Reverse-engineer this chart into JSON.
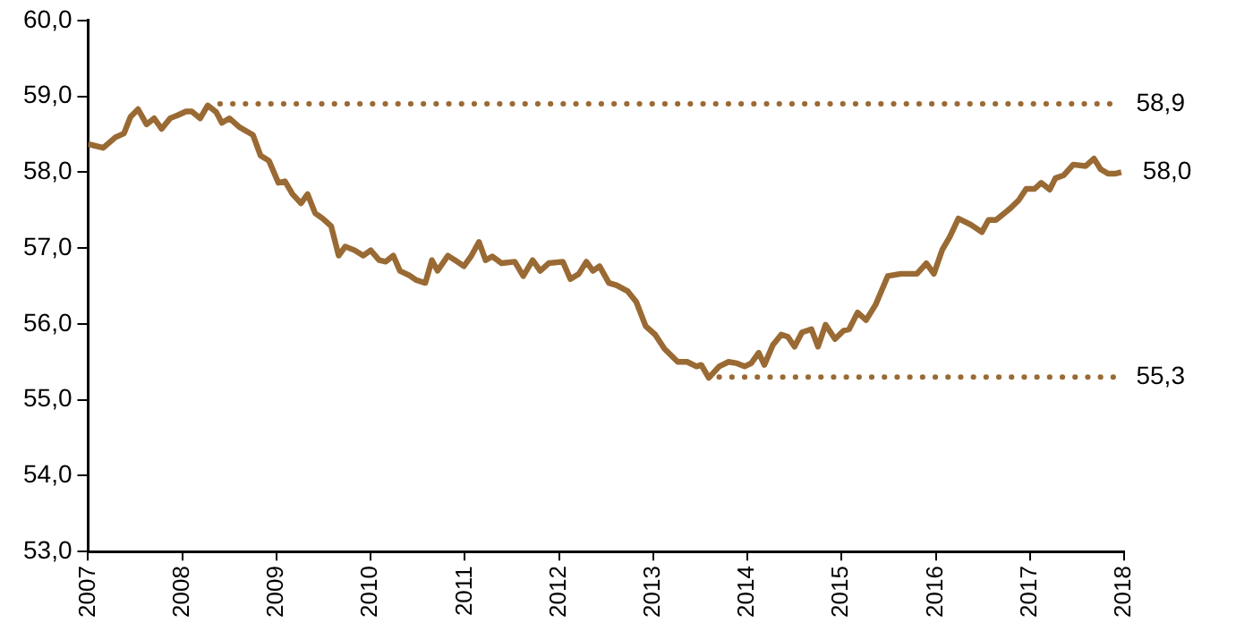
{
  "chart_data": {
    "type": "line",
    "xlim": [
      2007,
      2018
    ],
    "xticks": [
      2007,
      2008,
      2009,
      2010,
      2011,
      2012,
      2013,
      2014,
      2015,
      2016,
      2017,
      2018
    ],
    "ylim": [
      53,
      60
    ],
    "yticks": [
      {
        "value": 53,
        "label": "53,0"
      },
      {
        "value": 54,
        "label": "54,0"
      },
      {
        "value": 55,
        "label": "55,0"
      },
      {
        "value": 56,
        "label": "56,0"
      },
      {
        "value": 57,
        "label": "57,0"
      },
      {
        "value": 58,
        "label": "58,0"
      },
      {
        "value": 59,
        "label": "59,0"
      },
      {
        "value": 60,
        "label": "60,0"
      }
    ],
    "grid": false,
    "legend": false,
    "marker": "none",
    "series": [
      {
        "color": "#9a6a34",
        "line_style": "solid",
        "x": [
          2007.0,
          2007.16,
          2007.29,
          2007.38,
          2007.45,
          2007.53,
          2007.62,
          2007.7,
          2007.78,
          2007.87,
          2007.95,
          2008.04,
          2008.1,
          2008.19,
          2008.27,
          2008.36,
          2008.42,
          2008.5,
          2008.61,
          2008.75,
          2008.83,
          2008.92,
          2009.02,
          2009.09,
          2009.17,
          2009.26,
          2009.33,
          2009.41,
          2009.49,
          2009.58,
          2009.66,
          2009.73,
          2009.83,
          2009.92,
          2010.0,
          2010.09,
          2010.16,
          2010.24,
          2010.31,
          2010.41,
          2010.48,
          2010.58,
          2010.65,
          2010.71,
          2010.82,
          2010.92,
          2010.99,
          2011.07,
          2011.15,
          2011.22,
          2011.29,
          2011.39,
          2011.53,
          2011.62,
          2011.72,
          2011.8,
          2011.89,
          2012.04,
          2012.12,
          2012.21,
          2012.29,
          2012.36,
          2012.43,
          2012.53,
          2012.61,
          2012.73,
          2012.82,
          2012.92,
          2013.02,
          2013.12,
          2013.26,
          2013.36,
          2013.46,
          2013.51,
          2013.59,
          2013.7,
          2013.8,
          2013.89,
          2013.97,
          2014.04,
          2014.12,
          2014.18,
          2014.27,
          2014.36,
          2014.43,
          2014.5,
          2014.58,
          2014.68,
          2014.75,
          2014.83,
          2014.93,
          2015.02,
          2015.08,
          2015.17,
          2015.26,
          2015.36,
          2015.49,
          2015.63,
          2015.8,
          2015.9,
          2015.98,
          2016.07,
          2016.15,
          2016.24,
          2016.37,
          2016.49,
          2016.56,
          2016.64,
          2016.78,
          2016.88,
          2016.96,
          2017.05,
          2017.12,
          2017.21,
          2017.27,
          2017.36,
          2017.46,
          2017.59,
          2017.68,
          2017.75,
          2017.83,
          2017.9,
          2017.97
        ],
        "values": [
          58.37,
          58.32,
          58.46,
          58.51,
          58.73,
          58.83,
          58.63,
          58.71,
          58.57,
          58.71,
          58.75,
          58.8,
          58.8,
          58.71,
          58.88,
          58.79,
          58.65,
          58.71,
          58.59,
          58.49,
          58.22,
          58.15,
          57.86,
          57.88,
          57.71,
          57.59,
          57.71,
          57.46,
          57.39,
          57.29,
          56.9,
          57.02,
          56.97,
          56.9,
          56.97,
          56.84,
          56.82,
          56.9,
          56.7,
          56.64,
          56.58,
          56.54,
          56.84,
          56.7,
          56.9,
          56.82,
          56.76,
          56.9,
          57.08,
          56.84,
          56.89,
          56.8,
          56.82,
          56.63,
          56.84,
          56.7,
          56.8,
          56.82,
          56.59,
          56.66,
          56.82,
          56.7,
          56.76,
          56.54,
          56.51,
          56.43,
          56.29,
          55.97,
          55.86,
          55.67,
          55.5,
          55.5,
          55.44,
          55.46,
          55.29,
          55.44,
          55.5,
          55.48,
          55.44,
          55.48,
          55.62,
          55.46,
          55.72,
          55.86,
          55.83,
          55.7,
          55.89,
          55.93,
          55.7,
          55.99,
          55.8,
          55.91,
          55.93,
          56.15,
          56.05,
          56.25,
          56.63,
          56.66,
          56.66,
          56.8,
          56.66,
          56.98,
          57.15,
          57.39,
          57.31,
          57.21,
          57.37,
          57.37,
          57.51,
          57.63,
          57.78,
          57.78,
          57.86,
          57.77,
          57.92,
          57.96,
          58.1,
          58.08,
          58.18,
          58.04,
          57.98,
          57.98,
          58.0
        ],
        "value_labels": [
          null,
          null,
          null,
          null,
          null,
          null,
          null,
          null,
          null,
          null,
          null,
          null,
          null,
          null,
          null,
          null,
          null,
          null,
          null,
          null,
          null,
          null,
          null,
          null,
          null,
          null,
          null,
          null,
          null,
          null,
          null,
          null,
          null,
          null,
          null,
          null,
          null,
          null,
          null,
          null,
          null,
          null,
          null,
          null,
          null,
          null,
          null,
          null,
          null,
          null,
          null,
          null,
          null,
          null,
          null,
          null,
          null,
          null,
          null,
          null,
          null,
          null,
          null,
          null,
          null,
          null,
          null,
          null,
          null,
          null,
          null,
          null,
          null,
          null,
          null,
          null,
          null,
          null,
          null,
          null,
          null,
          null,
          null,
          null,
          null,
          null,
          null,
          null,
          null,
          null,
          null,
          null,
          null,
          null,
          null,
          null,
          null,
          null,
          null,
          null,
          null,
          null,
          null,
          null,
          null,
          null,
          null,
          null,
          null,
          null,
          null,
          null,
          null,
          null,
          null,
          null,
          null,
          null,
          null,
          null,
          null,
          null,
          "58,0"
        ]
      },
      {
        "name": "58,9",
        "color": "#9a6a34",
        "line_style": "dotted",
        "x": [
          2008.4,
          2017.9
        ],
        "values": [
          58.9,
          58.9
        ]
      },
      {
        "name": "55,3",
        "color": "#9a6a34",
        "line_style": "dotted",
        "x": [
          2013.7,
          2017.9
        ],
        "values": [
          55.3,
          55.3
        ]
      }
    ]
  }
}
